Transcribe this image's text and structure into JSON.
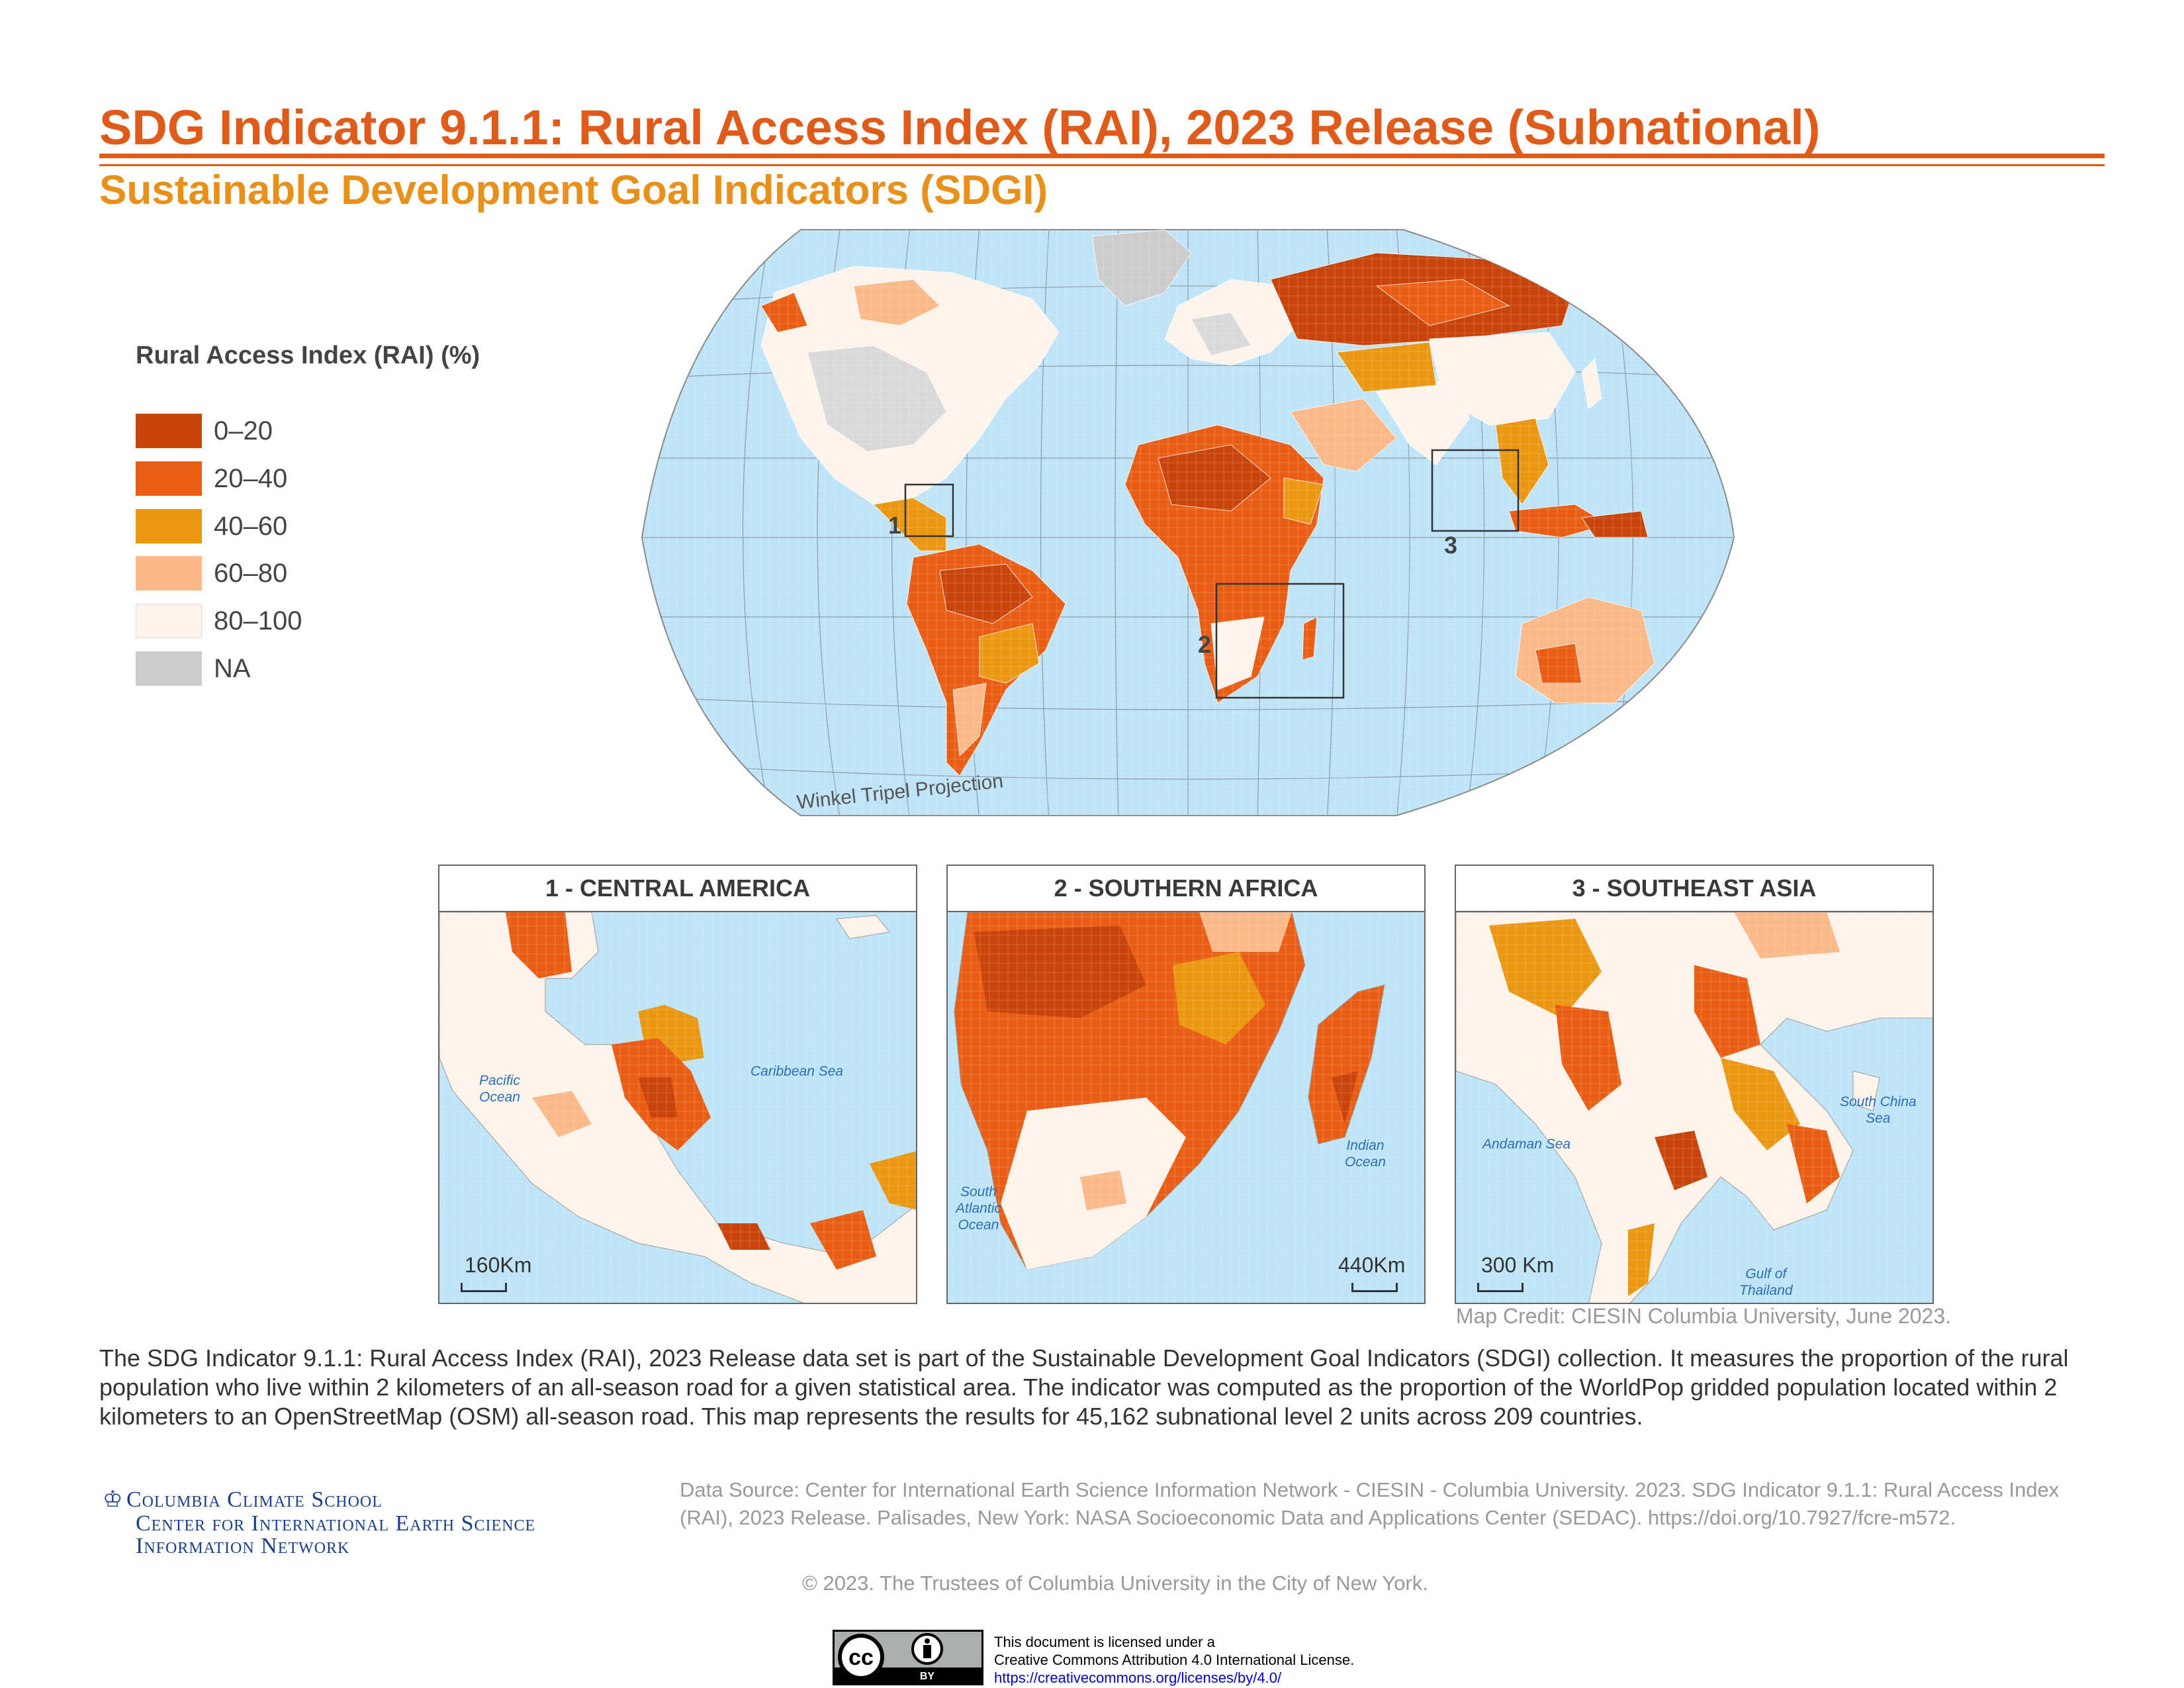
{
  "header": {
    "title": "SDG Indicator 9.1.1: Rural Access Index (RAI), 2023 Release (Subnational)",
    "subtitle": "Sustainable Development Goal Indicators (SDGI)"
  },
  "legend": {
    "title": "Rural Access Index (RAI) (%)",
    "items": [
      {
        "label": "0–20",
        "color": "#c9440a"
      },
      {
        "label": "20–40",
        "color": "#e95e14"
      },
      {
        "label": "40–60",
        "color": "#ea9712"
      },
      {
        "label": "60–80",
        "color": "#fbb98a"
      },
      {
        "label": "80–100",
        "color": "#fdf3ea"
      },
      {
        "label": "NA",
        "color": "#cccccc"
      }
    ]
  },
  "world_map": {
    "projection_label": "Winkel Tripel Projection",
    "ocean_color": "#bfe4f7",
    "inset_markers": [
      "1",
      "2",
      "3"
    ]
  },
  "insets": [
    {
      "number": "1",
      "heading": "1  -  CENTRAL AMERICA",
      "scale_label": "160Km",
      "seas": [
        "Pacific\nOcean",
        "Caribbean Sea"
      ]
    },
    {
      "number": "2",
      "heading": "2  -  SOUTHERN AFRICA",
      "scale_label": "440Km",
      "seas": [
        "South\nAtlantic\nOcean",
        "Indian\nOcean"
      ]
    },
    {
      "number": "3",
      "heading": "3  -  SOUTHEAST ASIA",
      "scale_label": "300 Km",
      "seas": [
        "Andaman Sea",
        "South China\nSea",
        "Gulf of\nThailand"
      ]
    }
  ],
  "credit": "Map Credit: CIESIN Columbia University, June 2023.",
  "description": "The SDG Indicator 9.1.1: Rural Access Index (RAI), 2023 Release data set is part of the Sustainable Development Goal Indicators (SDGI) collection. It measures the proportion of the rural population who live within 2 kilometers of an all-season road for a given statistical area. The indicator was computed as the proportion of the WorldPop gridded population located within 2 kilometers to an OpenStreetMap (OSM) all-season road. This map represents the results for 45,162 subnational level 2 units across 209 countries.",
  "logo": {
    "line1": "Columbia Climate School",
    "line2": "Center for International Earth Science",
    "line3": "Information Network"
  },
  "data_source": "Data Source: Center for International Earth Science Information Network - CIESIN - Columbia University. 2023. SDG Indicator 9.1.1: Rural Access Index (RAI), 2023 Release. Palisades, New York: NASA Socioeconomic Data and Applications Center (SEDAC). https://doi.org/10.7927/fcre-m572.",
  "copyright": "© 2023. The Trustees of Columbia University in the City of New York.",
  "license": {
    "badge_cc": "cc",
    "badge_by": "BY",
    "line1": "This document is licensed under a",
    "line2": "Creative Commons Attribution 4.0 International License.",
    "url": "https://creativecommons.org/licenses/by/4.0/"
  }
}
